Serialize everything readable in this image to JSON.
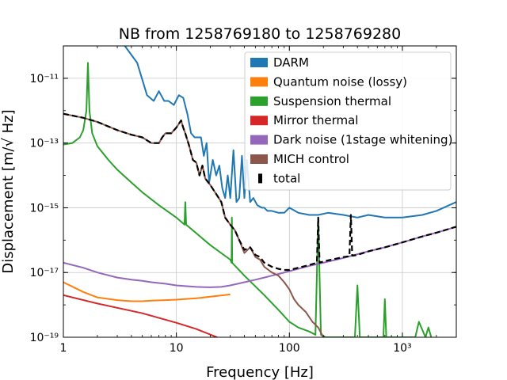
{
  "chart_data": {
    "type": "line",
    "title": "NB from 1258769180 to 1258769280",
    "xlabel": "Frequency [Hz]",
    "ylabel": "Displacement [m/√ Hz]",
    "xscale": "log",
    "yscale": "log",
    "xlim": [
      1,
      3000
    ],
    "ylim": [
      1e-19,
      1e-10
    ],
    "x_ticks": [
      {
        "value": 1,
        "label": "1"
      },
      {
        "value": 10,
        "label": "10"
      },
      {
        "value": 100,
        "label": "100"
      },
      {
        "value": 1000,
        "label": "10³"
      }
    ],
    "y_ticks": [
      {
        "value": 1e-19,
        "label": "10⁻¹⁹"
      },
      {
        "value": 1e-17,
        "label": "10⁻¹⁷"
      },
      {
        "value": 1e-15,
        "label": "10⁻¹⁵"
      },
      {
        "value": 1e-13,
        "label": "10⁻¹³"
      },
      {
        "value": 1e-11,
        "label": "10⁻¹¹"
      }
    ],
    "grid": true,
    "legend_position": "top-right",
    "series": [
      {
        "name": "DARM",
        "color": "#1f77b4",
        "style": "solid",
        "x": [
          3.5,
          4.5,
          5.5,
          6.3,
          7.0,
          7.8,
          8.5,
          9.5,
          10.5,
          11.5,
          12.5,
          13.5,
          14.5,
          16.5,
          17.5,
          18.5,
          19.5,
          21.0,
          22.5,
          24.0,
          25.5,
          27.0,
          28.5,
          30.0,
          32.0,
          34.0,
          36.0,
          38.0,
          40.0,
          42.0,
          45.0,
          48.0,
          52.0,
          57.0,
          60.0,
          64.0,
          70.0,
          80.0,
          90.0,
          100.0,
          120.0,
          150.0,
          180.0,
          220.0,
          300.0,
          400.0,
          500.0,
          700.0,
          1000.0,
          1500.0,
          2000.0,
          3000.0
        ],
        "y": [
          1e-10,
          3e-11,
          3e-12,
          2e-12,
          4e-12,
          2e-12,
          2e-12,
          1.5e-12,
          3e-12,
          2.5e-12,
          8e-13,
          2e-13,
          1.5e-13,
          1.5e-13,
          4e-14,
          1e-13,
          6e-15,
          3e-14,
          1e-14,
          2e-14,
          4e-15,
          2e-15,
          1e-14,
          2e-15,
          6e-14,
          1.5e-15,
          2e-15,
          4e-14,
          2e-15,
          3e-14,
          1.5e-15,
          2e-15,
          1.2e-15,
          1e-15,
          1e-15,
          8e-16,
          8e-16,
          7e-16,
          7e-16,
          1e-15,
          7e-16,
          6e-16,
          6e-16,
          7e-16,
          6e-16,
          5e-16,
          6e-16,
          5e-16,
          5e-16,
          6e-16,
          8e-16,
          1.5e-15
        ]
      },
      {
        "name": "Quantum noise (lossy)",
        "color": "#ff7f0e",
        "style": "solid",
        "x": [
          1,
          1.5,
          2,
          3,
          4,
          5,
          6,
          8,
          10,
          15,
          20,
          30
        ],
        "y": [
          5e-18,
          2.5e-18,
          1.7e-18,
          1.4e-18,
          1.3e-18,
          1.3e-18,
          1.35e-18,
          1.4e-18,
          1.45e-18,
          1.6e-18,
          1.8e-18,
          2.1e-18
        ]
      },
      {
        "name": "Suspension thermal",
        "color": "#2ca02c",
        "style": "solid",
        "x": [
          1,
          1.2,
          1.4,
          1.5,
          1.6,
          1.65,
          1.7,
          1.8,
          2.0,
          2.5,
          3,
          4,
          5,
          7,
          10,
          11.8,
          12.0,
          12.2,
          14,
          20,
          30,
          30.8,
          31.0,
          31.2,
          40,
          60,
          80,
          100,
          120,
          150,
          170,
          180,
          190,
          210,
          250,
          300,
          350,
          380,
          400,
          420,
          450,
          500,
          600,
          650,
          680,
          700,
          720,
          750,
          1000,
          1200,
          1300,
          1400,
          1600,
          1700,
          1800
        ],
        "y": [
          9e-14,
          1e-13,
          1.5e-13,
          2.5e-13,
          1e-12,
          3e-11,
          1e-12,
          2e-13,
          8e-14,
          3e-14,
          1.5e-14,
          6e-15,
          3e-15,
          1.2e-15,
          5e-16,
          3e-16,
          1.5e-15,
          3e-16,
          2e-16,
          7e-17,
          2.5e-17,
          2e-17,
          5e-16,
          2e-17,
          8e-18,
          2e-18,
          7e-19,
          3e-19,
          2e-19,
          1.5e-19,
          1.2e-19,
          5e-16,
          1.2e-19,
          1e-19,
          1e-19,
          1e-19,
          1e-19,
          1e-19,
          4e-18,
          1e-19,
          1e-19,
          1e-19,
          1e-19,
          1e-19,
          1e-19,
          1.5e-18,
          1e-19,
          1e-19,
          1e-19,
          1e-19,
          1e-19,
          3e-19,
          1e-19,
          2e-19,
          1e-19
        ]
      },
      {
        "name": "Mirror thermal",
        "color": "#d62728",
        "style": "solid",
        "x": [
          1,
          2,
          5,
          10,
          15,
          23
        ],
        "y": [
          2e-18,
          1.1e-18,
          5.5e-19,
          2.8e-19,
          1.8e-19,
          1e-19
        ]
      },
      {
        "name": "Dark noise (1stage whitening)",
        "color": "#9467bd",
        "style": "solid",
        "x": [
          1,
          1.5,
          2,
          3,
          4,
          5,
          6,
          8,
          10,
          12,
          15,
          20,
          25,
          30,
          40,
          50,
          60,
          70,
          80,
          100,
          150,
          200,
          300,
          500,
          700,
          1000,
          1500,
          2000,
          3000
        ],
        "y": [
          2e-17,
          1.4e-17,
          1e-17,
          7e-18,
          6e-18,
          5.5e-18,
          5e-18,
          4.5e-18,
          4e-18,
          3.8e-18,
          3.6e-18,
          3.5e-18,
          3.6e-18,
          4e-18,
          5e-18,
          6e-18,
          7e-18,
          8e-18,
          9e-18,
          1.1e-17,
          1.6e-17,
          2e-17,
          2.8e-17,
          4.5e-17,
          6e-17,
          8.5e-17,
          1.3e-16,
          1.7e-16,
          2.6e-16
        ]
      },
      {
        "name": "MICH control",
        "color": "#8c564b",
        "style": "solid",
        "x": [
          1,
          1.5,
          2,
          3,
          4,
          5,
          6,
          7,
          7.5,
          8,
          9,
          10,
          11,
          11.5,
          12,
          13,
          14,
          15,
          16,
          17,
          18,
          20,
          22,
          25,
          27,
          30,
          33,
          36,
          40,
          45,
          50,
          55,
          60,
          70,
          80,
          90,
          100,
          110,
          120,
          140,
          160,
          180,
          200
        ],
        "y": [
          8e-13,
          6e-13,
          4.5e-13,
          2.5e-13,
          1.8e-13,
          1.5e-13,
          1e-13,
          1e-13,
          1.5e-13,
          2e-13,
          2e-13,
          3e-13,
          5e-13,
          3e-13,
          2e-13,
          8e-14,
          3e-14,
          2.5e-14,
          1e-14,
          2e-14,
          8e-15,
          5e-15,
          3e-15,
          1.5e-15,
          5e-16,
          3e-16,
          2e-16,
          1e-16,
          4e-17,
          6e-17,
          3e-17,
          2.5e-17,
          1.5e-17,
          1e-17,
          8e-18,
          5e-18,
          3e-18,
          1.5e-18,
          1e-18,
          6e-19,
          3e-19,
          2e-19,
          1e-19
        ]
      },
      {
        "name": "total",
        "color": "#000000",
        "style": "dashed",
        "x": [
          1,
          1.5,
          2,
          3,
          4,
          5,
          6,
          7,
          7.5,
          8,
          9,
          10,
          11,
          11.5,
          12,
          13,
          14,
          15,
          16,
          17,
          18,
          20,
          22,
          25,
          27,
          30,
          33,
          36,
          40,
          45,
          50,
          55,
          60,
          70,
          80,
          90,
          100,
          120,
          150,
          175,
          180,
          185,
          200,
          300,
          340,
          350,
          360,
          400,
          500,
          700,
          1000,
          1500,
          2000,
          3000
        ],
        "y": [
          8e-13,
          6e-13,
          4.5e-13,
          2.5e-13,
          1.8e-13,
          1.5e-13,
          1e-13,
          1e-13,
          1.5e-13,
          2e-13,
          2e-13,
          3e-13,
          5e-13,
          3e-13,
          2e-13,
          8e-14,
          3e-14,
          2.5e-14,
          1e-14,
          2e-14,
          8e-15,
          5e-15,
          3e-15,
          1.5e-15,
          5e-16,
          3e-16,
          2e-16,
          1e-16,
          5e-17,
          6e-17,
          3.5e-17,
          3e-17,
          2e-17,
          1.5e-17,
          1.3e-17,
          1.2e-17,
          1.2e-17,
          1.4e-17,
          1.7e-17,
          2e-17,
          5e-16,
          2e-17,
          2.2e-17,
          3e-17,
          3.2e-17,
          6e-16,
          3.3e-17,
          3.5e-17,
          4.5e-17,
          6e-17,
          8.5e-17,
          1.3e-16,
          1.7e-16,
          2.6e-16
        ]
      }
    ]
  }
}
